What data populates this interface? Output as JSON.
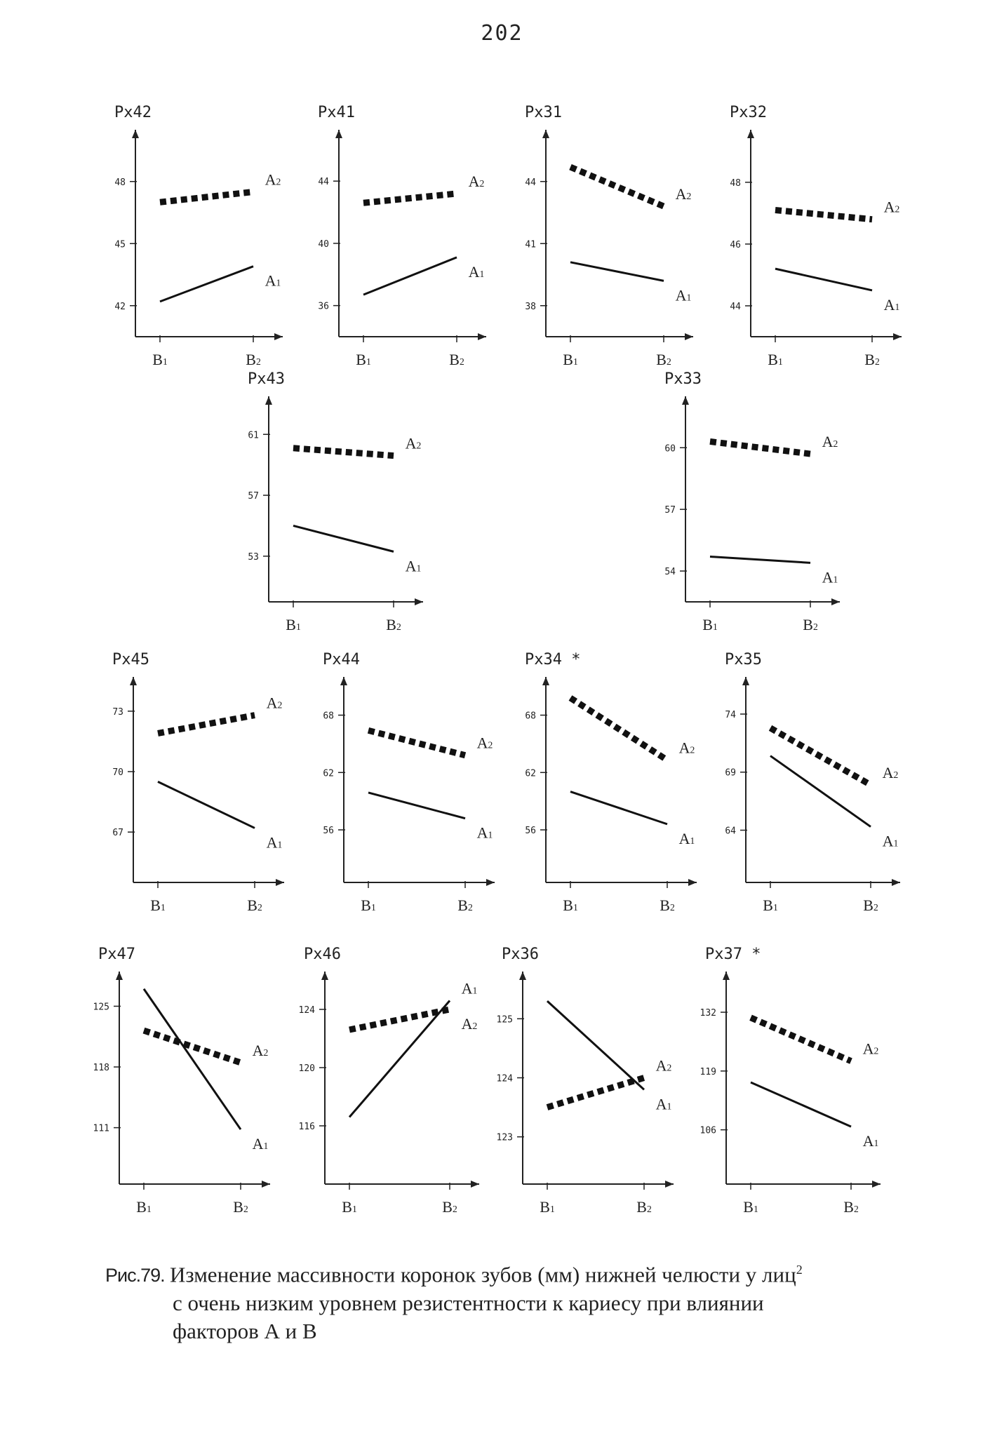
{
  "page_number": "202",
  "caption": {
    "lead": "Рис.79.",
    "line1": "Изменение массивности коронок зубов (мм) нижней челюсти  у лиц",
    "superscript": "2",
    "line2": "с очень низким уровнем резистентности к кариесу при влиянии",
    "line3": "факторов А и В"
  },
  "chart_data": [
    {
      "type": "line",
      "title": "Px42",
      "categories": [
        "B1",
        "B2"
      ],
      "yticks": [
        "48",
        "45",
        "42"
      ],
      "ylim": [
        40.5,
        50.5
      ],
      "series": [
        {
          "name": "A2",
          "values": [
            47.0,
            47.5
          ]
        },
        {
          "name": "A1",
          "values": [
            42.2,
            43.9
          ]
        }
      ]
    },
    {
      "type": "line",
      "title": "Px41",
      "categories": [
        "B1",
        "B2"
      ],
      "yticks": [
        "44",
        "40",
        "36"
      ],
      "ylim": [
        34,
        47.3
      ],
      "series": [
        {
          "name": "A2",
          "values": [
            42.6,
            43.2
          ]
        },
        {
          "name": "A1",
          "values": [
            36.7,
            39.1
          ]
        }
      ]
    },
    {
      "type": "line",
      "title": "Px31",
      "categories": [
        "B1",
        "B2"
      ],
      "yticks": [
        "44",
        "41",
        "38"
      ],
      "ylim": [
        36.5,
        46.5
      ],
      "series": [
        {
          "name": "A2",
          "values": [
            44.7,
            42.8
          ]
        },
        {
          "name": "A1",
          "values": [
            40.1,
            39.2
          ]
        }
      ]
    },
    {
      "type": "line",
      "title": "Px32",
      "categories": [
        "B1",
        "B2"
      ],
      "yticks": [
        "48",
        "46",
        "44"
      ],
      "ylim": [
        43,
        49.7
      ],
      "series": [
        {
          "name": "A2",
          "values": [
            47.1,
            46.8
          ]
        },
        {
          "name": "A1",
          "values": [
            45.2,
            44.5
          ]
        }
      ]
    },
    {
      "type": "line",
      "title": "Px43",
      "categories": [
        "B1",
        "B2"
      ],
      "yticks": [
        "61",
        "57",
        "53"
      ],
      "ylim": [
        50,
        63.5
      ],
      "series": [
        {
          "name": "A2",
          "values": [
            60.1,
            59.6
          ]
        },
        {
          "name": "A1",
          "values": [
            55.0,
            53.3
          ]
        }
      ]
    },
    {
      "type": "line",
      "title": "Px33",
      "categories": [
        "B1",
        "B2"
      ],
      "yticks": [
        "60",
        "57",
        "54"
      ],
      "ylim": [
        52.5,
        62.5
      ],
      "series": [
        {
          "name": "A2",
          "values": [
            60.3,
            59.7
          ]
        },
        {
          "name": "A1",
          "values": [
            54.7,
            54.4
          ]
        }
      ]
    },
    {
      "type": "line",
      "title": "Px45",
      "categories": [
        "B1",
        "B2"
      ],
      "yticks": [
        "73",
        "70",
        "67"
      ],
      "ylim": [
        64.5,
        74.7
      ],
      "series": [
        {
          "name": "A2",
          "values": [
            71.9,
            72.8
          ]
        },
        {
          "name": "A1",
          "values": [
            69.5,
            67.2
          ]
        }
      ]
    },
    {
      "type": "line",
      "title": "Px44",
      "categories": [
        "B1",
        "B2"
      ],
      "yticks": [
        "68",
        "62",
        "56"
      ],
      "ylim": [
        50.5,
        72
      ],
      "series": [
        {
          "name": "A2",
          "values": [
            66.4,
            63.8
          ]
        },
        {
          "name": "A1",
          "values": [
            59.9,
            57.2
          ]
        }
      ]
    },
    {
      "type": "line",
      "title": "Px34 *",
      "categories": [
        "B1",
        "B2"
      ],
      "yticks": [
        "68",
        "62",
        "56"
      ],
      "ylim": [
        50.5,
        72
      ],
      "series": [
        {
          "name": "A2",
          "values": [
            69.8,
            63.3
          ]
        },
        {
          "name": "A1",
          "values": [
            60.0,
            56.6
          ]
        }
      ]
    },
    {
      "type": "line",
      "title": "Px35",
      "categories": [
        "B1",
        "B2"
      ],
      "yticks": [
        "74",
        "69",
        "64"
      ],
      "ylim": [
        59.5,
        77.2
      ],
      "series": [
        {
          "name": "A2",
          "values": [
            72.8,
            67.9
          ]
        },
        {
          "name": "A1",
          "values": [
            70.4,
            64.3
          ]
        }
      ]
    },
    {
      "type": "line",
      "title": "Px47",
      "categories": [
        "B1",
        "B2"
      ],
      "yticks": [
        "125",
        "118",
        "111"
      ],
      "ylim": [
        104.5,
        129
      ],
      "series": [
        {
          "name": "A2",
          "values": [
            122.2,
            118.5
          ]
        },
        {
          "name": "A1",
          "values": [
            127.0,
            110.8
          ]
        }
      ]
    },
    {
      "type": "line",
      "title": "Px46",
      "categories": [
        "B1",
        "B2"
      ],
      "yticks": [
        "124",
        "120",
        "116"
      ],
      "ylim": [
        112,
        126.6
      ],
      "series": [
        {
          "name": "A2",
          "values": [
            122.6,
            124.0
          ]
        },
        {
          "name": "A1",
          "values": [
            116.6,
            124.6
          ]
        }
      ]
    },
    {
      "type": "line",
      "title": "Px36",
      "categories": [
        "B1",
        "B2"
      ],
      "yticks": [
        "125",
        "124",
        "123"
      ],
      "ylim": [
        122.2,
        125.8
      ],
      "series": [
        {
          "name": "A2",
          "values": [
            123.5,
            124.0
          ]
        },
        {
          "name": "A1",
          "values": [
            125.3,
            123.8
          ]
        }
      ]
    },
    {
      "type": "line",
      "title": "Px37 *",
      "categories": [
        "B1",
        "B2"
      ],
      "yticks": [
        "132",
        "119",
        "106"
      ],
      "ylim": [
        94,
        141
      ],
      "series": [
        {
          "name": "A2",
          "values": [
            130.8,
            121.2
          ]
        },
        {
          "name": "A1",
          "values": [
            116.5,
            106.7
          ]
        }
      ]
    }
  ]
}
